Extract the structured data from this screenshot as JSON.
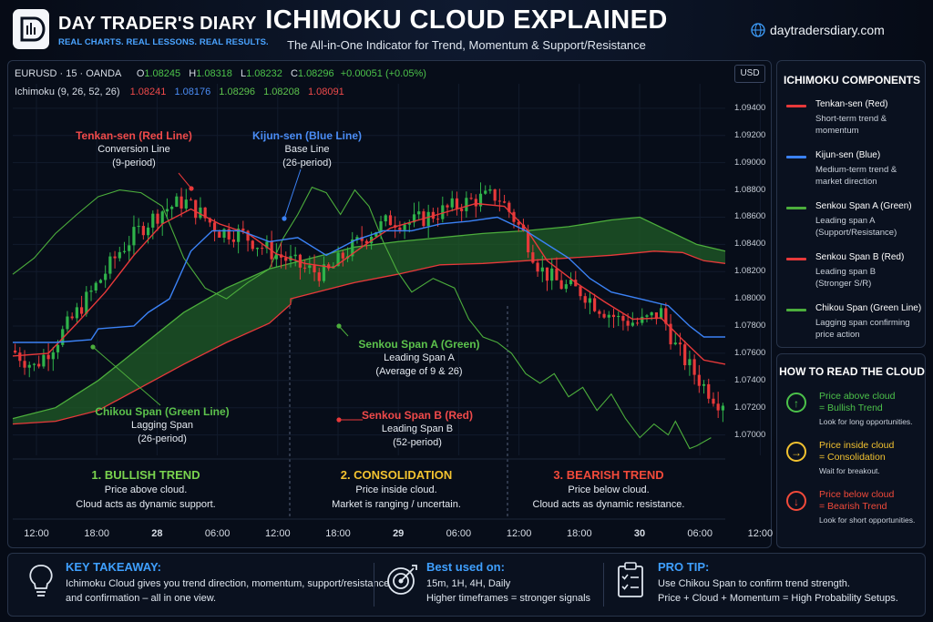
{
  "header": {
    "brand_title": "DAY TRADER'S DIARY",
    "brand_tagline": "REAL CHARTS. REAL LESSONS. REAL RESULTS.",
    "title": "ICHIMOKU CLOUD EXPLAINED",
    "subtitle": "The All-in-One Indicator for Trend, Momentum & Support/Resistance",
    "website": "daytradersdiary.com"
  },
  "chart_info": {
    "symbol_line": "EURUSD · 15 · OANDA",
    "o_label": "O",
    "o_value": "1.08245",
    "h_label": "H",
    "h_value": "1.08318",
    "l_label": "L",
    "l_value": "1.08232",
    "c_label": "C",
    "c_value": "1.08296",
    "change": "+0.00051 (+0.05%)",
    "indicator_label": "Ichimoku (9, 26, 52, 26)",
    "ind_values": [
      "1.08241",
      "1.08176",
      "1.08296",
      "1.08208",
      "1.08091"
    ],
    "currency": "USD"
  },
  "colors": {
    "tenkan": "#e8393a",
    "kijun": "#3b82f6",
    "spanA": "#4cae3c",
    "spanB": "#e8393a",
    "chikou": "#4cae3c",
    "cloud_bull": "#1f5a26",
    "cloud_bear": "#6a1c1c",
    "candle_up": "#2fb34a",
    "candle_down": "#e8393a",
    "accent": "#3fa0ff"
  },
  "chart_data": {
    "type": "candlestick-ichimoku",
    "symbol": "EURUSD",
    "timeframe": "15",
    "ylim": [
      1.0685,
      1.0958
    ],
    "y_ticks": [
      "1.09400",
      "1.09200",
      "1.09000",
      "1.08800",
      "1.08600",
      "1.08400",
      "1.08200",
      "1.08000",
      "1.07800",
      "1.07600",
      "1.07400",
      "1.07200",
      "1.07000"
    ],
    "x_ticks": [
      {
        "label": "12:00",
        "bold": false
      },
      {
        "label": "18:00",
        "bold": false
      },
      {
        "label": "28",
        "bold": true
      },
      {
        "label": "06:00",
        "bold": false
      },
      {
        "label": "12:00",
        "bold": false
      },
      {
        "label": "18:00",
        "bold": false
      },
      {
        "label": "29",
        "bold": true
      },
      {
        "label": "06:00",
        "bold": false
      },
      {
        "label": "12:00",
        "bold": false
      },
      {
        "label": "18:00",
        "bold": false
      },
      {
        "label": "30",
        "bold": true
      },
      {
        "label": "06:00",
        "bold": false
      },
      {
        "label": "12:00",
        "bold": false
      }
    ],
    "x_range": [
      0,
      100
    ],
    "candle_path": [
      [
        0,
        1.0762
      ],
      [
        3,
        1.075
      ],
      [
        6,
        1.0768
      ],
      [
        9,
        1.079
      ],
      [
        12,
        1.0812
      ],
      [
        15,
        1.0835
      ],
      [
        18,
        1.0852
      ],
      [
        21,
        1.0865
      ],
      [
        24,
        1.0872
      ],
      [
        26,
        1.0864
      ],
      [
        29,
        1.085
      ],
      [
        32,
        1.0848
      ],
      [
        35,
        1.0838
      ],
      [
        38,
        1.083
      ],
      [
        41,
        1.0822
      ],
      [
        44,
        1.0818
      ],
      [
        47,
        1.0835
      ],
      [
        50,
        1.0848
      ],
      [
        53,
        1.0858
      ],
      [
        56,
        1.0856
      ],
      [
        59,
        1.0862
      ],
      [
        62,
        1.0868
      ],
      [
        65,
        1.0873
      ],
      [
        68,
        1.0876
      ],
      [
        70,
        1.0862
      ],
      [
        72,
        1.0845
      ],
      [
        74,
        1.0822
      ],
      [
        77,
        1.081
      ],
      [
        80,
        1.0805
      ],
      [
        82,
        1.0795
      ],
      [
        85,
        1.0785
      ],
      [
        88,
        1.0782
      ],
      [
        91,
        1.079
      ],
      [
        93,
        1.0765
      ],
      [
        95,
        1.075
      ],
      [
        97,
        1.0736
      ],
      [
        99,
        1.0725
      ]
    ],
    "tenkan": [
      [
        0,
        1.0758
      ],
      [
        5,
        1.076
      ],
      [
        9,
        1.0782
      ],
      [
        13,
        1.0805
      ],
      [
        17,
        1.0832
      ],
      [
        21,
        1.0855
      ],
      [
        25,
        1.0866
      ],
      [
        29,
        1.0855
      ],
      [
        33,
        1.0848
      ],
      [
        37,
        1.0833
      ],
      [
        41,
        1.0826
      ],
      [
        45,
        1.0823
      ],
      [
        49,
        1.0838
      ],
      [
        53,
        1.0852
      ],
      [
        57,
        1.0858
      ],
      [
        61,
        1.0864
      ],
      [
        65,
        1.087
      ],
      [
        69,
        1.0868
      ],
      [
        72,
        1.0852
      ],
      [
        75,
        1.0828
      ],
      [
        79,
        1.0812
      ],
      [
        83,
        1.0798
      ],
      [
        87,
        1.0785
      ],
      [
        91,
        1.0786
      ],
      [
        94,
        1.077
      ],
      [
        97,
        1.0755
      ],
      [
        100,
        1.0752
      ]
    ],
    "kijun": [
      [
        0,
        1.0768
      ],
      [
        6,
        1.0768
      ],
      [
        11,
        1.077
      ],
      [
        12,
        1.0778
      ],
      [
        17,
        1.078
      ],
      [
        19,
        1.079
      ],
      [
        22,
        1.08
      ],
      [
        25,
        1.0835
      ],
      [
        28,
        1.085
      ],
      [
        32,
        1.085
      ],
      [
        36,
        1.0842
      ],
      [
        40,
        1.0845
      ],
      [
        44,
        1.0832
      ],
      [
        48,
        1.0843
      ],
      [
        52,
        1.085
      ],
      [
        56,
        1.085
      ],
      [
        60,
        1.0855
      ],
      [
        64,
        1.0857
      ],
      [
        68,
        1.086
      ],
      [
        72,
        1.085
      ],
      [
        75,
        1.084
      ],
      [
        78,
        1.083
      ],
      [
        81,
        1.0815
      ],
      [
        84,
        1.0805
      ],
      [
        88,
        1.08
      ],
      [
        92,
        1.0795
      ],
      [
        95,
        1.078
      ],
      [
        97,
        1.0772
      ],
      [
        100,
        1.0772
      ]
    ],
    "span_a": [
      [
        0,
        1.0712
      ],
      [
        6,
        1.072
      ],
      [
        12,
        1.074
      ],
      [
        18,
        1.0765
      ],
      [
        24,
        1.079
      ],
      [
        30,
        1.0808
      ],
      [
        36,
        1.0822
      ],
      [
        42,
        1.083
      ],
      [
        48,
        1.0838
      ],
      [
        54,
        1.0842
      ],
      [
        60,
        1.0845
      ],
      [
        66,
        1.0848
      ],
      [
        72,
        1.085
      ],
      [
        78,
        1.0853
      ],
      [
        84,
        1.0858
      ],
      [
        88,
        1.086
      ],
      [
        92,
        1.085
      ],
      [
        96,
        1.084
      ],
      [
        100,
        1.0835
      ]
    ],
    "span_b": [
      [
        0,
        1.0708
      ],
      [
        6,
        1.071
      ],
      [
        12,
        1.0718
      ],
      [
        18,
        1.0735
      ],
      [
        24,
        1.0752
      ],
      [
        30,
        1.0768
      ],
      [
        36,
        1.0782
      ],
      [
        39,
        1.0796
      ],
      [
        39,
        1.08
      ],
      [
        48,
        1.0812
      ],
      [
        54,
        1.0818
      ],
      [
        60,
        1.0825
      ],
      [
        66,
        1.0826
      ],
      [
        72,
        1.0828
      ],
      [
        78,
        1.083
      ],
      [
        84,
        1.0832
      ],
      [
        90,
        1.0835
      ],
      [
        94,
        1.0834
      ],
      [
        97,
        1.0828
      ],
      [
        100,
        1.0826
      ]
    ],
    "chikou": [
      [
        0,
        1.0818
      ],
      [
        3,
        1.083
      ],
      [
        6,
        1.0848
      ],
      [
        9,
        1.0862
      ],
      [
        12,
        1.0875
      ],
      [
        15,
        1.088
      ],
      [
        18,
        1.0878
      ],
      [
        21,
        1.0868
      ],
      [
        24,
        1.083
      ],
      [
        27,
        1.0808
      ],
      [
        30,
        1.08
      ],
      [
        33,
        1.0812
      ],
      [
        36,
        1.0822
      ],
      [
        38,
        1.0845
      ],
      [
        40,
        1.0862
      ],
      [
        42,
        1.0882
      ],
      [
        44,
        1.0878
      ],
      [
        46,
        1.0862
      ],
      [
        48,
        1.088
      ],
      [
        50,
        1.0868
      ],
      [
        52,
        1.0842
      ],
      [
        54,
        1.082
      ],
      [
        56,
        1.0805
      ],
      [
        59,
        1.0815
      ],
      [
        62,
        1.0808
      ],
      [
        64,
        1.0785
      ],
      [
        66,
        1.0772
      ],
      [
        68,
        1.0768
      ],
      [
        70,
        1.076
      ],
      [
        72,
        1.0745
      ],
      [
        74,
        1.0738
      ],
      [
        76,
        1.0745
      ],
      [
        78,
        1.0728
      ],
      [
        80,
        1.0735
      ],
      [
        82,
        1.0718
      ],
      [
        84,
        1.073
      ],
      [
        86,
        1.0712
      ],
      [
        88,
        1.0698
      ],
      [
        90,
        1.0708
      ],
      [
        92,
        1.07
      ],
      [
        93,
        1.071
      ],
      [
        95,
        1.069
      ],
      [
        96,
        1.0692
      ],
      [
        98,
        1.0698
      ]
    ],
    "annotations": {
      "tenkan": {
        "title": "Tenkan-sen (Red Line)",
        "l1": "Conversion Line",
        "l2": "(9-period)"
      },
      "kijun": {
        "title": "Kijun-sen (Blue Line)",
        "l1": "Base Line",
        "l2": "(26-period)"
      },
      "span_a": {
        "title": "Senkou Span A (Green)",
        "l1": "Leading Span A",
        "l2": "(Average of 9 & 26)"
      },
      "span_b": {
        "title": "Senkou Span B (Red)",
        "l1": "Leading Span B",
        "l2": "(52-period)"
      },
      "chikou": {
        "title": "Chikou Span (Green Line)",
        "l1": "Lagging Span",
        "l2": "(26-period)"
      }
    },
    "phases": [
      {
        "title": "1. BULLISH TREND",
        "l1": "Price above cloud.",
        "l2": "Cloud acts as dynamic support.",
        "color": "#7ad34e"
      },
      {
        "title": "2. CONSOLIDATION",
        "l1": "Price inside cloud.",
        "l2": "Market is ranging / uncertain.",
        "color": "#f2c230"
      },
      {
        "title": "3. BEARISH TREND",
        "l1": "Price below cloud.",
        "l2": "Cloud acts as dynamic resistance.",
        "color": "#f24a3a"
      }
    ]
  },
  "components": {
    "title": "ICHIMOKU COMPONENTS",
    "items": [
      {
        "name": "Tenkan-sen (Red)",
        "d1": "Short-term trend &",
        "d2": "momentum",
        "color": "#e8393a"
      },
      {
        "name": "Kijun-sen (Blue)",
        "d1": "Medium-term trend &",
        "d2": "market direction",
        "color": "#3b82f6"
      },
      {
        "name": "Senkou Span A (Green)",
        "d1": "Leading span A",
        "d2": "(Support/Resistance)",
        "color": "#4cae3c"
      },
      {
        "name": "Senkou Span B (Red)",
        "d1": "Leading span B",
        "d2": "(Stronger S/R)",
        "color": "#e8393a"
      },
      {
        "name": "Chikou Span (Green Line)",
        "d1": "Lagging span confirming",
        "d2": "price action",
        "color": "#4cae3c"
      }
    ]
  },
  "read_cloud": {
    "title": "HOW TO READ THE CLOUD",
    "items": [
      {
        "icon": "↑",
        "h1": "Price above cloud",
        "h2": "= Bullish Trend",
        "sub": "Look for long opportunities.",
        "color": "#4cc24a"
      },
      {
        "icon": "→",
        "h1": "Price inside cloud",
        "h2": "= Consolidation",
        "sub": "Wait for breakout.",
        "color": "#f2c230"
      },
      {
        "icon": "↓",
        "h1": "Price below cloud",
        "h2": "= Bearish Trend",
        "sub": "Look for short opportunities.",
        "color": "#f24a3a"
      }
    ]
  },
  "bottom": {
    "takeaway_title": "KEY TAKEAWAY:",
    "takeaway_l1": "Ichimoku Cloud gives you trend direction, momentum, support/resistance",
    "takeaway_l2": "and confirmation – all in one view.",
    "best_title": "Best used on:",
    "best_l1": "15m, 1H, 4H, Daily",
    "best_l2": "Higher timeframes = stronger signals",
    "tip_title": "PRO TIP:",
    "tip_l1": "Use Chikou Span to confirm trend strength.",
    "tip_l2": "Price + Cloud + Momentum = High Probability Setups."
  }
}
